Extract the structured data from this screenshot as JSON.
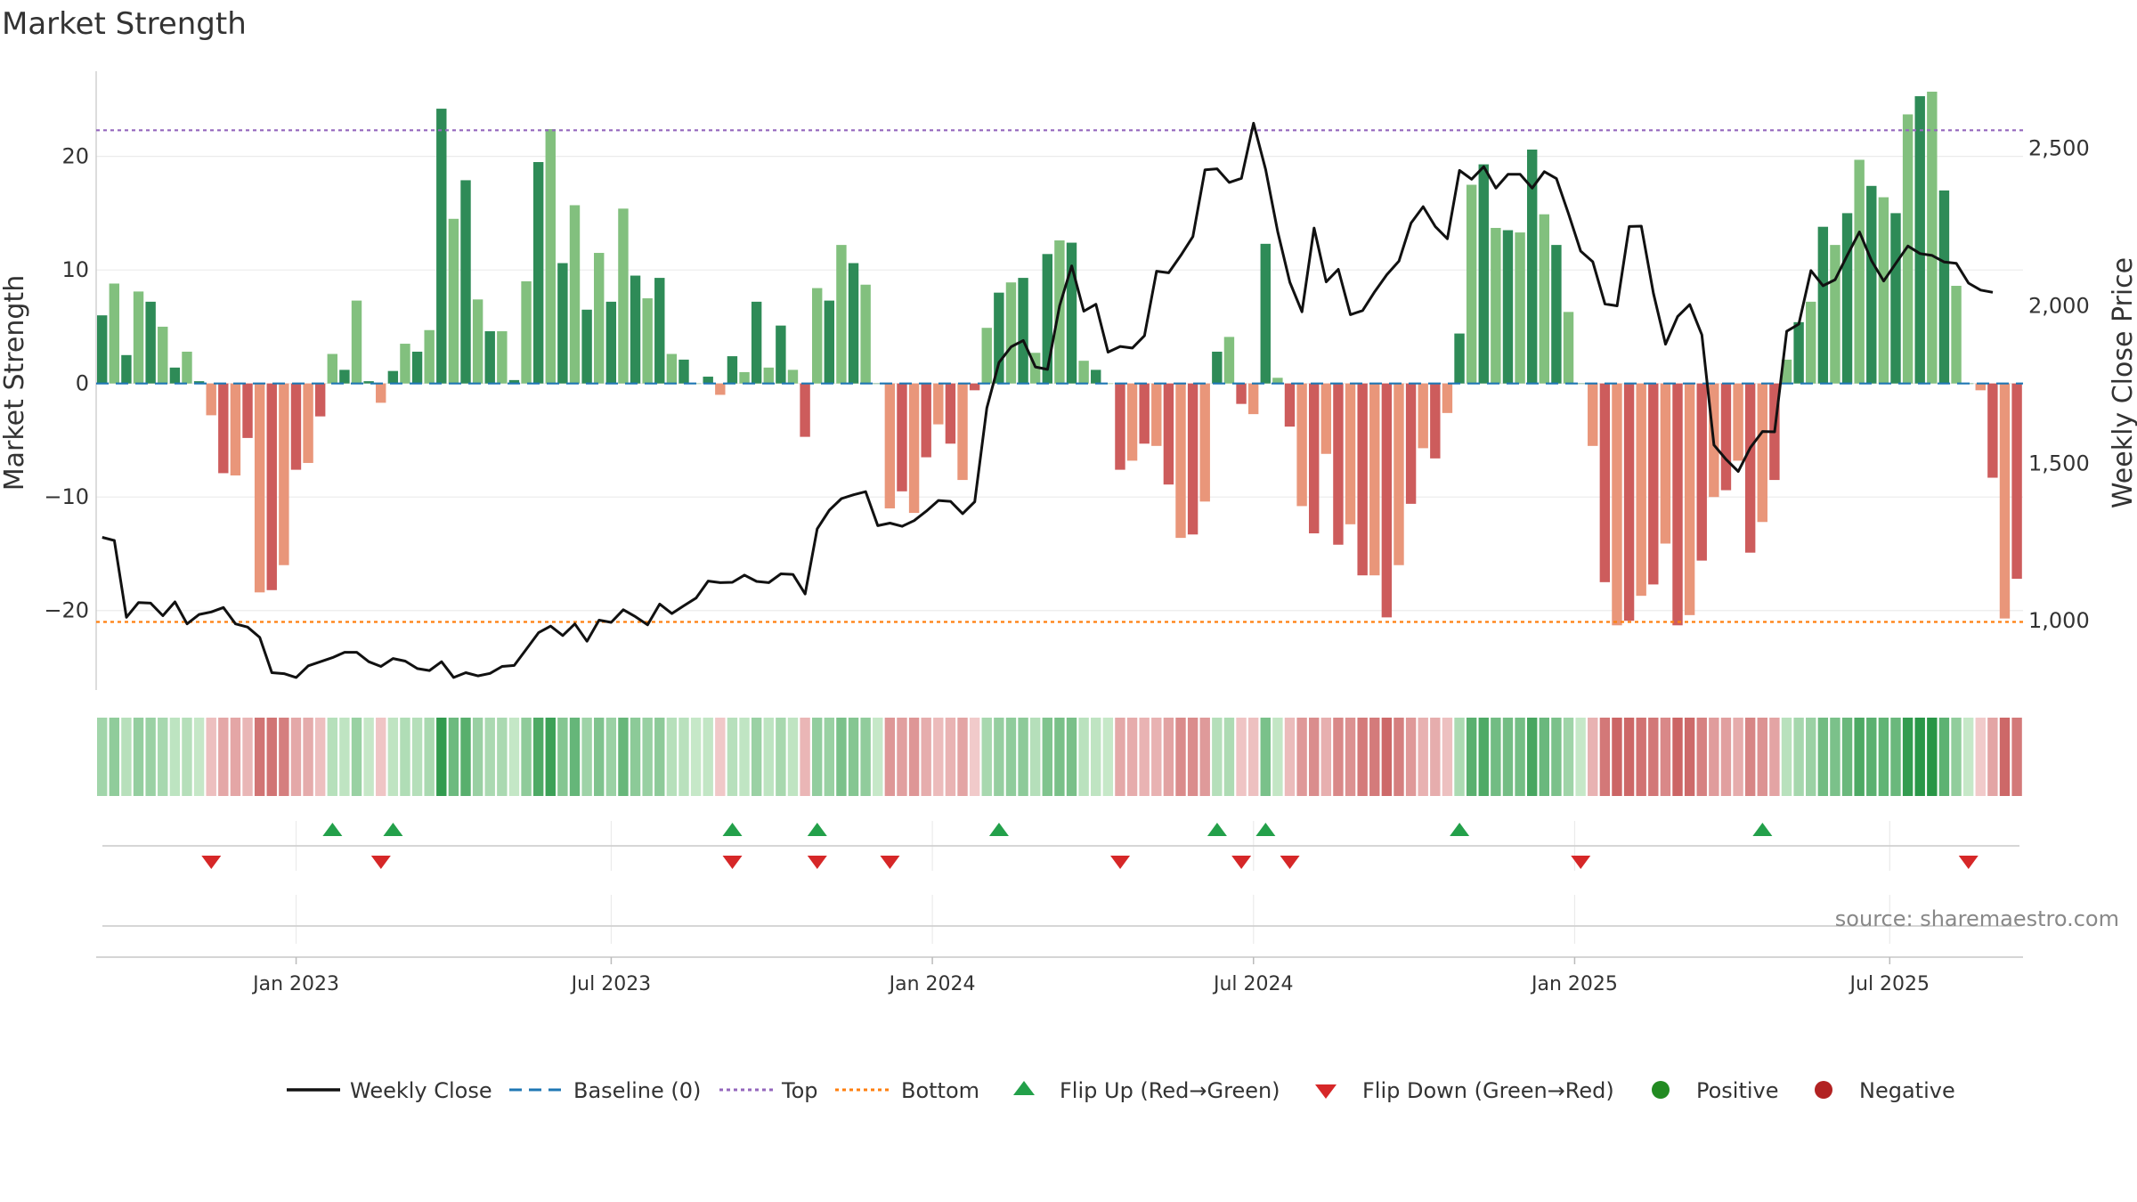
{
  "chart_data": {
    "type": "bar",
    "title": "Market Strength",
    "ylabel_left": "Market Strength",
    "ylabel_right": "Weekly Close Price",
    "source": "source: sharemaestro.com",
    "ylim_left": [
      -27,
      27.5
    ],
    "ylim_right": [
      780,
      2745
    ],
    "yticks_left": [
      {
        "value": 20,
        "label": "20"
      },
      {
        "value": 10,
        "label": "10"
      },
      {
        "value": 0,
        "label": "0"
      },
      {
        "value": -10,
        "label": "−10"
      },
      {
        "value": -20,
        "label": "−20"
      }
    ],
    "yticks_right": [
      {
        "value": 2500,
        "label": "2,500"
      },
      {
        "value": 2000,
        "label": "2,000"
      },
      {
        "value": 1500,
        "label": "1,500"
      },
      {
        "value": 1000,
        "label": "1,000"
      }
    ],
    "xlim_weeks": [
      0,
      159
    ],
    "x_ticks": [
      {
        "week": 16.5,
        "label": "Jan 2023"
      },
      {
        "week": 42.5,
        "label": "Jul 2023"
      },
      {
        "week": 69,
        "label": "Jan 2024"
      },
      {
        "week": 95.5,
        "label": "Jul 2024"
      },
      {
        "week": 122,
        "label": "Jan 2025"
      },
      {
        "week": 148,
        "label": "Jul 2025"
      }
    ],
    "top_line": 22.3,
    "bottom_line": -21,
    "strength": [
      6,
      8.8,
      2.5,
      8.1,
      7.2,
      5,
      1.4,
      2.8,
      0.2,
      -2.8,
      -7.9,
      -8.1,
      -4.8,
      -18.4,
      -18.2,
      -16,
      -7.6,
      -7,
      -2.9,
      2.6,
      1.2,
      7.3,
      0.2,
      -1.7,
      1.1,
      3.5,
      2.8,
      4.7,
      24.2,
      14.5,
      17.9,
      7.4,
      4.6,
      4.6,
      0.3,
      9,
      19.5,
      22.4,
      10.6,
      15.7,
      6.5,
      11.5,
      7.2,
      15.4,
      9.5,
      7.5,
      9.3,
      2.6,
      2.1,
      0,
      0.6,
      -1,
      2.4,
      1,
      7.2,
      1.4,
      5.1,
      1.2,
      -4.7,
      8.4,
      7.3,
      12.2,
      10.6,
      8.7,
      0,
      -11,
      -9.5,
      -11.4,
      -6.5,
      -3.6,
      -5.3,
      -8.5,
      -0.6,
      4.9,
      8,
      8.9,
      9.3,
      2.7,
      11.4,
      12.6,
      12.4,
      2,
      1.2,
      0,
      -7.6,
      -6.8,
      -5.3,
      -5.5,
      -8.9,
      -13.6,
      -13.3,
      -10.4,
      2.8,
      4.1,
      -1.8,
      -2.7,
      12.3,
      0.5,
      -3.8,
      -10.8,
      -13.2,
      -6.2,
      -14.2,
      -12.4,
      -16.9,
      -16.9,
      -20.6,
      -16,
      -10.6,
      -5.7,
      -6.6,
      -2.6,
      4.4,
      17.5,
      19.3,
      13.7,
      13.5,
      13.3,
      20.6,
      14.9,
      12.2,
      6.3,
      0,
      -5.5,
      -17.5,
      -21.3,
      -20.9,
      -18.7,
      -17.7,
      -14.1,
      -21.3,
      -20.4,
      -15.6,
      -10,
      -9.4,
      -6.8,
      -14.9,
      -12.2,
      -8.5,
      2.1,
      5.4,
      7.2,
      13.8,
      12.2,
      15,
      19.7,
      17.4,
      16.4,
      15,
      23.7,
      25.3,
      25.7,
      17,
      8.6,
      0,
      -0.6,
      -8.3,
      -20.7,
      -17.2
    ],
    "weekly_close": [
      1265,
      1255,
      1011,
      1058,
      1056,
      1016,
      1060,
      990,
      1020,
      1028,
      1042,
      990,
      980,
      947,
      835,
      832,
      820,
      857,
      870,
      883,
      900,
      900,
      870,
      855,
      880,
      872,
      848,
      842,
      870,
      820,
      835,
      825,
      833,
      855,
      858,
      910,
      962,
      983,
      953,
      990,
      935,
      1002,
      995,
      1035,
      1013,
      987,
      1053,
      1023,
      1048,
      1072,
      1126,
      1121,
      1122,
      1145,
      1125,
      1121,
      1149,
      1147,
      1085,
      1292,
      1351,
      1388,
      1400,
      1410,
      1302,
      1310,
      1300,
      1318,
      1348,
      1382,
      1379,
      1340,
      1378,
      1676,
      1820,
      1870,
      1890,
      1806,
      1798,
      2000,
      2127,
      1983,
      2005,
      1853,
      1871,
      1866,
      1905,
      2110,
      2105,
      2160,
      2220,
      2432,
      2435,
      2392,
      2405,
      2580,
      2433,
      2235,
      2075,
      1981,
      2247,
      2076,
      2116,
      1972,
      1985,
      2045,
      2099,
      2142,
      2263,
      2315,
      2252,
      2213,
      2430,
      2402,
      2442,
      2374,
      2418,
      2418,
      2374,
      2426,
      2404,
      2292,
      2174,
      2140,
      2006,
      2000,
      2252,
      2253,
      2040,
      1878,
      1966,
      2004,
      1908,
      1558,
      1512,
      1474,
      1550,
      1601,
      1600,
      1919,
      1942,
      2112,
      2064,
      2083,
      2161,
      2235,
      2143,
      2079,
      2135,
      2190,
      2166,
      2160,
      2139,
      2135,
      2072,
      2050,
      2043
    ],
    "flips_up_weeks": [
      19,
      24,
      52,
      59,
      74,
      92,
      96,
      112,
      137
    ],
    "flips_down_weeks": [
      9,
      23,
      52,
      59,
      65,
      84,
      94,
      98,
      122,
      154
    ],
    "legend": [
      {
        "key": "weekly_close",
        "label": "Weekly Close"
      },
      {
        "key": "baseline",
        "label": "Baseline (0)"
      },
      {
        "key": "top",
        "label": "Top"
      },
      {
        "key": "bottom",
        "label": "Bottom"
      },
      {
        "key": "flip_up",
        "label": "Flip Up (Red→Green)"
      },
      {
        "key": "flip_down",
        "label": "Flip Down (Green→Red)"
      },
      {
        "key": "positive",
        "label": "Positive"
      },
      {
        "key": "negative",
        "label": "Negative"
      }
    ],
    "colors": {
      "pos_dark": "#2e8b57",
      "pos_light": "#82c07e",
      "neg_dark": "#cd5c5c",
      "neg_light": "#e9967a",
      "close_line": "#111111",
      "baseline": "#1f77b4",
      "top": "#9467bd",
      "bottom": "#ff7f0e",
      "flip_up": "#23a04a",
      "flip_down": "#d62728",
      "positive": "#228b22",
      "negative": "#b22222"
    }
  }
}
